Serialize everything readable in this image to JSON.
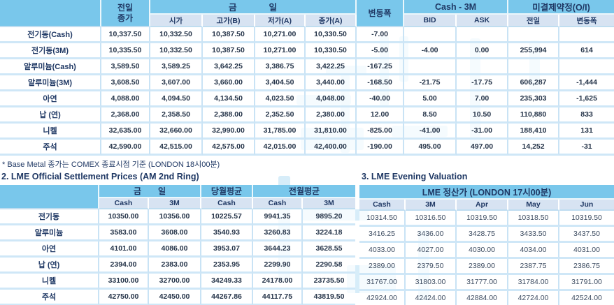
{
  "theme": {
    "band_blue": "#79C7EB",
    "subheader_blue": "#D7E3F2",
    "navy_text": "#1F3864",
    "grid_blue": "#C9E3F5",
    "watermark_blue": "#CDE9F8"
  },
  "top_table": {
    "header": {
      "prev_day_line1": "전일",
      "prev_day_line2": "종가",
      "today_part1": "금",
      "today_part2": "일",
      "open": "시가",
      "high": "고가(B)",
      "low": "저가(A)",
      "close": "종가(A)",
      "change": "변동폭",
      "cash_3m": "Cash - 3M",
      "bid": "BID",
      "ask": "ASK",
      "open_interest": "미결제약정(O/I)",
      "oi_prev": "전일",
      "oi_change": "변동폭"
    },
    "rows": [
      {
        "label": "전기동(Cash)",
        "cells": [
          "10,337.50",
          "10,332.50",
          "10,387.50",
          "10,271.00",
          "10,330.50",
          "-7.00",
          "",
          "",
          "",
          ""
        ]
      },
      {
        "label": "전기동(3M)",
        "cells": [
          "10,335.50",
          "10,332.50",
          "10,387.50",
          "10,271.00",
          "10,330.50",
          "-5.00",
          "-4.00",
          "0.00",
          "255,994",
          "614"
        ]
      },
      {
        "label": "알루미늄(Cash)",
        "cells": [
          "3,589.50",
          "3,589.25",
          "3,642.25",
          "3,386.75",
          "3,422.25",
          "-167.25",
          "",
          "",
          "",
          ""
        ]
      },
      {
        "label": "알루미늄(3M)",
        "cells": [
          "3,608.50",
          "3,607.00",
          "3,660.00",
          "3,404.50",
          "3,440.00",
          "-168.50",
          "-21.75",
          "-17.75",
          "606,287",
          "-1,444"
        ]
      },
      {
        "label": "아연",
        "cells": [
          "4,088.00",
          "4,094.50",
          "4,134.50",
          "4,023.50",
          "4,048.00",
          "-40.00",
          "5.00",
          "7.00",
          "235,303",
          "-1,625"
        ]
      },
      {
        "label": "납 (연)",
        "cells": [
          "2,368.00",
          "2,358.50",
          "2,388.00",
          "2,352.50",
          "2,380.00",
          "12.00",
          "8.50",
          "10.50",
          "110,880",
          "833"
        ]
      },
      {
        "label": "니켈",
        "cells": [
          "32,635.00",
          "32,660.00",
          "32,990.00",
          "31,785.00",
          "31,810.00",
          "-825.00",
          "-41.00",
          "-31.00",
          "188,410",
          "131"
        ]
      },
      {
        "label": "주석",
        "cells": [
          "42,590.00",
          "42,515.00",
          "42,575.00",
          "42,015.00",
          "42,400.00",
          "-190.00",
          "495.00",
          "497.00",
          "14,252",
          "-31"
        ]
      }
    ],
    "footnote": "* Base Metal 종가는 COMEX 종료시점 기준 (LONDON 18시00분)"
  },
  "settlement_table": {
    "title": "2. LME Official Settlement Prices (AM 2nd Ring)",
    "header": {
      "today_part1": "금",
      "today_part2": "일",
      "month_avg": "당월평균",
      "prev_month_avg": "전월평균",
      "cash": "Cash",
      "m3": "3M",
      "month_avg_cash": "Cash",
      "prev_cash": "Cash",
      "prev_m3": "3M"
    },
    "rows": [
      {
        "label": "전기동",
        "cells": [
          "10350.00",
          "10356.00",
          "10225.57",
          "9941.35",
          "9895.20"
        ]
      },
      {
        "label": "알루미늄",
        "cells": [
          "3583.00",
          "3608.00",
          "3540.93",
          "3260.83",
          "3224.18"
        ]
      },
      {
        "label": "아연",
        "cells": [
          "4101.00",
          "4086.00",
          "3953.07",
          "3644.23",
          "3628.55"
        ]
      },
      {
        "label": "납 (연)",
        "cells": [
          "2394.00",
          "2383.00",
          "2353.95",
          "2299.90",
          "2290.58"
        ]
      },
      {
        "label": "니켈",
        "cells": [
          "33100.00",
          "32700.00",
          "34249.33",
          "24178.00",
          "23735.50"
        ]
      },
      {
        "label": "주석",
        "cells": [
          "42750.00",
          "42450.00",
          "44267.86",
          "44117.75",
          "43819.50"
        ]
      }
    ]
  },
  "evening_table": {
    "title": "3. LME Evening Valuation",
    "band": "LME 정산가 (LONDON 17시00분)",
    "columns": [
      "Cash",
      "3M",
      "Apr",
      "May",
      "Jun"
    ],
    "rows": [
      {
        "cells": [
          "10314.50",
          "10316.50",
          "10319.50",
          "10318.50",
          "10319.50"
        ]
      },
      {
        "cells": [
          "3416.25",
          "3436.00",
          "3428.75",
          "3433.50",
          "3437.50"
        ]
      },
      {
        "cells": [
          "4033.00",
          "4027.00",
          "4030.00",
          "4034.00",
          "4031.00"
        ]
      },
      {
        "cells": [
          "2389.00",
          "2379.50",
          "2389.00",
          "2387.75",
          "2386.75"
        ]
      },
      {
        "cells": [
          "31767.00",
          "31803.00",
          "31777.00",
          "31784.00",
          "31791.00"
        ]
      },
      {
        "cells": [
          "42924.00",
          "42424.00",
          "42884.00",
          "42724.00",
          "42524.00"
        ]
      }
    ]
  }
}
